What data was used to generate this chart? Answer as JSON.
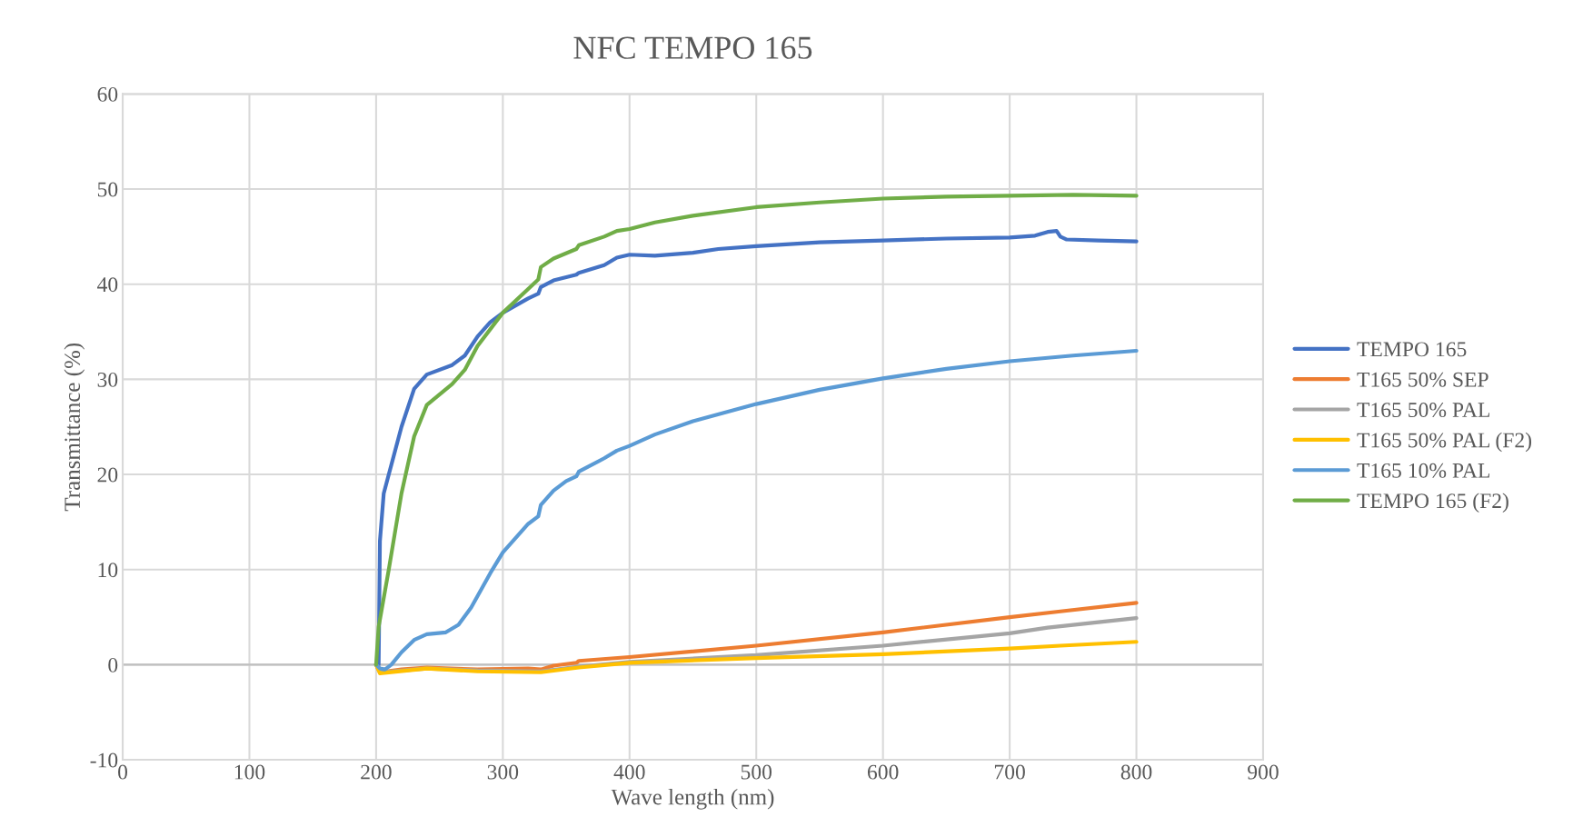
{
  "chart_data": {
    "type": "line",
    "title": "NFC TEMPO 165",
    "xlabel": "Wave length (nm)",
    "ylabel": "Transmittance (%)",
    "xlim": [
      0,
      900
    ],
    "xticks": [
      0,
      100,
      200,
      300,
      400,
      500,
      600,
      700,
      800,
      900
    ],
    "ylim": [
      -10,
      60
    ],
    "yticks": [
      -10,
      0,
      10,
      20,
      30,
      40,
      50,
      60
    ],
    "grid": true,
    "legend": "right",
    "marker": "none",
    "line_style": "solid",
    "series": [
      {
        "name": "TEMPO 165",
        "color": "#4472c4",
        "x": [
          200,
          202,
          203,
          206,
          210,
          220,
          230,
          240,
          260,
          270,
          280,
          290,
          300,
          320,
          328,
          330,
          340,
          358,
          360,
          380,
          390,
          400,
          420,
          450,
          470,
          500,
          550,
          600,
          650,
          700,
          720,
          730,
          737,
          740,
          745,
          770,
          800
        ],
        "values": [
          0,
          0,
          13,
          18,
          20,
          25,
          29,
          30.5,
          31.5,
          32.5,
          34.5,
          36,
          37,
          38.5,
          39,
          39.7,
          40.4,
          41,
          41.2,
          42,
          42.8,
          43.1,
          43,
          43.3,
          43.7,
          44,
          44.4,
          44.6,
          44.8,
          44.9,
          45.1,
          45.5,
          45.6,
          45,
          44.7,
          44.6,
          44.5
        ]
      },
      {
        "name": "T165 50% SEP",
        "color": "#ed7d31",
        "x": [
          200,
          203,
          220,
          240,
          280,
          320,
          330,
          340,
          358,
          360,
          400,
          500,
          600,
          700,
          740,
          800
        ],
        "values": [
          0,
          -0.8,
          -0.5,
          -0.3,
          -0.5,
          -0.4,
          -0.5,
          -0.1,
          0.2,
          0.4,
          0.8,
          2,
          3.4,
          5,
          5.6,
          6.5
        ]
      },
      {
        "name": "T165 50% PAL",
        "color": "#a5a5a5",
        "x": [
          200,
          203,
          240,
          280,
          330,
          360,
          400,
          500,
          600,
          700,
          730,
          800
        ],
        "values": [
          0,
          -0.8,
          -0.4,
          -0.6,
          -0.7,
          -0.2,
          0.3,
          1,
          2,
          3.3,
          3.9,
          4.9
        ]
      },
      {
        "name": "T165 50% PAL (F2)",
        "color": "#ffc000",
        "x": [
          200,
          203,
          240,
          280,
          330,
          360,
          400,
          500,
          600,
          700,
          740,
          800
        ],
        "values": [
          0,
          -0.9,
          -0.4,
          -0.7,
          -0.8,
          -0.3,
          0.2,
          0.7,
          1.1,
          1.7,
          2,
          2.4
        ]
      },
      {
        "name": "T165 10% PAL",
        "color": "#5b9bd5",
        "x": [
          200,
          203,
          207,
          212,
          220,
          230,
          240,
          255,
          265,
          275,
          290,
          300,
          310,
          320,
          328,
          330,
          340,
          350,
          358,
          360,
          380,
          390,
          400,
          420,
          450,
          500,
          550,
          600,
          650,
          700,
          750,
          800
        ],
        "values": [
          0,
          -0.4,
          -0.5,
          0,
          1.3,
          2.6,
          3.2,
          3.4,
          4.2,
          6,
          9.6,
          11.8,
          13.3,
          14.8,
          15.6,
          16.8,
          18.3,
          19.3,
          19.8,
          20.3,
          21.7,
          22.5,
          23,
          24.2,
          25.6,
          27.4,
          28.9,
          30.1,
          31.1,
          31.9,
          32.5,
          33
        ]
      },
      {
        "name": "TEMPO 165 (F2)",
        "color": "#70ad47",
        "x": [
          200,
          202,
          210,
          220,
          230,
          240,
          260,
          270,
          280,
          300,
          320,
          328,
          330,
          340,
          358,
          360,
          380,
          390,
          400,
          420,
          450,
          500,
          550,
          600,
          650,
          700,
          750,
          800
        ],
        "values": [
          0,
          4,
          10,
          18,
          24,
          27.3,
          29.5,
          31,
          33.5,
          37,
          39.5,
          40.5,
          41.8,
          42.7,
          43.7,
          44.1,
          45,
          45.6,
          45.8,
          46.5,
          47.2,
          48.1,
          48.6,
          49,
          49.2,
          49.3,
          49.4,
          49.3
        ]
      }
    ]
  }
}
